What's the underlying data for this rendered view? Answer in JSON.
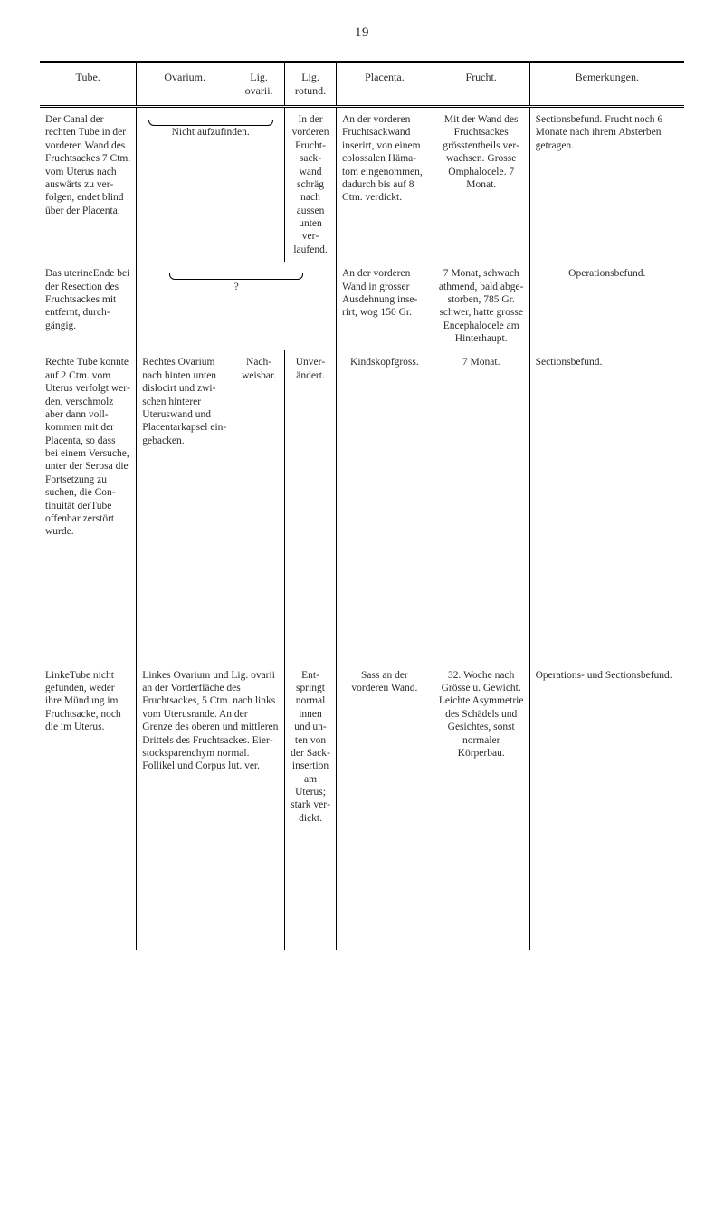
{
  "page": {
    "number_display": "19"
  },
  "headers": {
    "tube": "Tube.",
    "ovarium": "Ovarium.",
    "lig_ovarii": "Lig. ovarii.",
    "lig_rotund": "Lig. rotund.",
    "placenta": "Placenta.",
    "frucht": "Frucht.",
    "bemerkungen": "Bemerkungen."
  },
  "rows": [
    {
      "tube": "Der Canal der rechten Tube in der vorderen Wand des Fruchtsackes 7 Ctm. vom Ute­rus nach aus­wärts zu ver­folgen, endet blind über der Placenta.",
      "ovarium_span": "Nicht aufzufinden.",
      "lig_rotund": "In der vorde­ren Frucht­sack­wand schräg nach aussen unten ver­laufend.",
      "placenta": "An der vor­deren Fruchtsack­wand inse­rirt, von ei­nem colossa­len Häma­tom einge­nommen, dadurch bis auf 8 Ctm. verdickt.",
      "frucht": "Mit der Wand des Frucht­sackes grössten­theils ver­wachsen. Grosse Om­phalocele. 7 Monat.",
      "bemerkungen": "Sectionsbefund. Frucht noch 6 Monate nach ihrem Absterben getragen."
    },
    {
      "tube": "Das uterineEnde bei der Resec­tion des Frucht­sackes mit ent­fernt, durch­gängig.",
      "ovarium_q": "?",
      "placenta": "An der vor­deren Wand in grosser Ausdeh­nung inse­rirt, wog 150 Gr.",
      "frucht": "7 Monat, schwach athmend, bald abge­storben, 785 Gr. schwer, hatte grosse Encephalo­cele am Hinter­haupt.",
      "bemerkungen": "Operations­befund."
    },
    {
      "tube": "Rechte Tube konnte auf 2 Ctm. vom Ute­rus verfolgt wer­den, verschmolz aber dann voll­kommen mit der Placenta, so dass bei einem Ver­suche, unter der Serosa die Fort­setzung zu suchen, die Con­tinuität derTube offenbar zerstört wurde.",
      "ovarium": "Rechtes Ovarium nach hinten unten dislo­cirt und zwi­schen hinte­rer Uterus­wand und Placentar­kapsel ein­gebacken.",
      "lig_ovarii": "Nach­weis­bar.",
      "lig_rotund": "Unver­ändert.",
      "placenta": "Kindskopf­gross.",
      "frucht": "7 Monat.",
      "bemerkungen": "Sectionsbefund."
    },
    {
      "tube": "LinkeTube nicht gefunden, weder ihre Mündung im Fruchtsacke, noch die im Uterus.",
      "ovarium_span3": "Linkes Ovarium und Lig. ovarii an der Vorderfläche des Fruchtsackes, 5 Ctm. nach links vom Uterus­rande. An der Grenze des oberen und mitt­leren Drittels des Fruchtsackes. Eier­stocksparenchym nor­mal. Follikel und Cor­pus lut. ver.",
      "lig_rotund": "Ent­springt normal innen und un­ten von der Sack­inser­tion am Uterus; stark ver­dickt.",
      "placenta": "Sass an der vorderen Wand.",
      "frucht": "32. Woche nach Grösse u. Gewicht. Leichte Asymmetrie des Schädels und Gesich­tes, sonst normaler Körperbau.",
      "bemerkungen": "Operations- und Sectionsbefund."
    }
  ]
}
